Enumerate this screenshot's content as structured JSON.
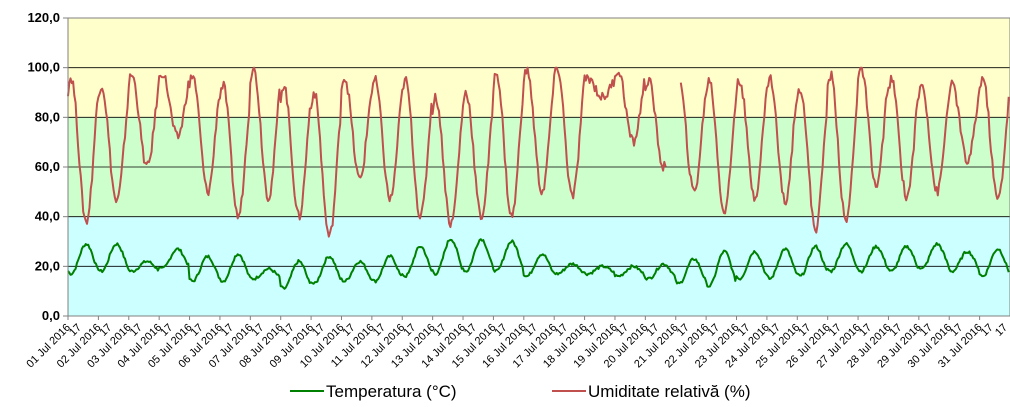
{
  "chart_data": {
    "type": "line",
    "title": "",
    "xlabel": "",
    "ylabel": "",
    "ylim": [
      0,
      120
    ],
    "yticks": [
      "0,0",
      "20,0",
      "40,0",
      "60,0",
      "80,0",
      "100,0",
      "120,0"
    ],
    "grid": true,
    "legend_position": "bottom",
    "background_bands": [
      {
        "from": 0,
        "to": 40,
        "color": "#ccffff"
      },
      {
        "from": 40,
        "to": 80,
        "color": "#ccffcc"
      },
      {
        "from": 80,
        "to": 120,
        "color": "#ffffcc"
      }
    ],
    "x_tick_labels": [
      "01 Jul 2016",
      "02 Jul 2016",
      "03 Jul 2016",
      "04 Jul 2016",
      "05 Jul 2016",
      "06 Jul 2016",
      "07 Jul 2016",
      "08 Jul 2016",
      "09 Jul 2016",
      "10 Jul 2016",
      "11 Jul 2016",
      "12 Jul 2016",
      "13 Jul 2016",
      "14 Jul 2016",
      "15 Jul 2016",
      "16 Jul 2016",
      "17 Jul 2016",
      "18 Jul 2016",
      "19 Jul 2016",
      "20 Jul 2016",
      "21 Jul 2016",
      "22 Jul 2016",
      "23 Jul 2016",
      "24 Jul 2016",
      "25 Jul 2016",
      "26 Jul 2016",
      "27 Jul 2016",
      "28 Jul 2016",
      "29 Jul 2016",
      "30 Jul 2016",
      "31 Jul 2016"
    ],
    "x_tick_suffix": "17",
    "days": [
      "01 Jul",
      "02 Jul",
      "03 Jul",
      "04 Jul",
      "05 Jul",
      "06 Jul",
      "07 Jul",
      "08 Jul",
      "09 Jul",
      "10 Jul",
      "11 Jul",
      "12 Jul",
      "13 Jul",
      "14 Jul",
      "15 Jul",
      "16 Jul",
      "17 Jul",
      "18 Jul",
      "19 Jul",
      "20 Jul",
      "21 Jul",
      "22 Jul",
      "23 Jul",
      "24 Jul",
      "25 Jul",
      "26 Jul",
      "27 Jul",
      "28 Jul",
      "29 Jul",
      "30 Jul",
      "31 Jul"
    ],
    "series": [
      {
        "name": "Temperatura (°C)",
        "color": "#008000",
        "daily_min": [
          17,
          18,
          18,
          19,
          14,
          14,
          15,
          11,
          13,
          14,
          14,
          16,
          17,
          18,
          18,
          16,
          17,
          17,
          16,
          15,
          13,
          12,
          15,
          15,
          16,
          18,
          18,
          18,
          19,
          18,
          16
        ],
        "daily_max": [
          29,
          29,
          22,
          27,
          24,
          25,
          19,
          22,
          24,
          22,
          24,
          28,
          31,
          31,
          30,
          25,
          21,
          20,
          20,
          21,
          23,
          26,
          26,
          27,
          28,
          29,
          28,
          28,
          29,
          26,
          27
        ]
      },
      {
        "name": "Umiditate relativă (%)",
        "color": "#c0504d",
        "daily_min": [
          38,
          46,
          60,
          72,
          50,
          40,
          48,
          40,
          32,
          55,
          47,
          40,
          37,
          40,
          40,
          50,
          48,
          88,
          70,
          60,
          50,
          42,
          48,
          46,
          35,
          38,
          52,
          48,
          50,
          62,
          47
        ],
        "daily_max": [
          96,
          93,
          97,
          98,
          97,
          93,
          100,
          93,
          90,
          96,
          95,
          95,
          88,
          90,
          98,
          99,
          100,
          96,
          99,
          95,
          95,
          95,
          95,
          96,
          92,
          97,
          100,
          95,
          93,
          93,
          96
        ],
        "gap": [
          "20 Jul",
          "21 Jul"
        ]
      }
    ]
  }
}
